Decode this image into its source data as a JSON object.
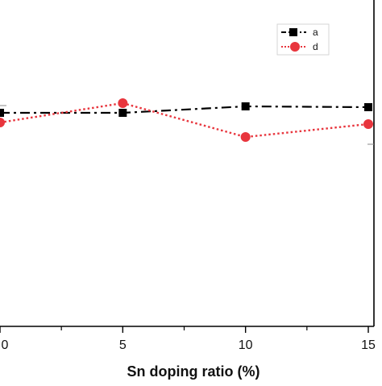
{
  "chart_data": {
    "type": "line",
    "xlabel": "Sn doping ratio (%)",
    "ylabel": "",
    "title": "",
    "x": [
      0,
      5,
      10,
      15
    ],
    "xticks": [
      0,
      5,
      10,
      15
    ],
    "xtick_labels": [
      "0",
      "5",
      "10",
      "15"
    ],
    "grid": false,
    "legend_position": "top-right",
    "series": [
      {
        "name": "a",
        "values": [
          138,
          138,
          130,
          131
        ],
        "color": "#000000",
        "line_style": "dash-dot",
        "marker": "square"
      },
      {
        "name": "d",
        "values": [
          150,
          126,
          168,
          152
        ],
        "color": "#e8353d",
        "line_style": "dotted",
        "marker": "circle"
      }
    ]
  }
}
